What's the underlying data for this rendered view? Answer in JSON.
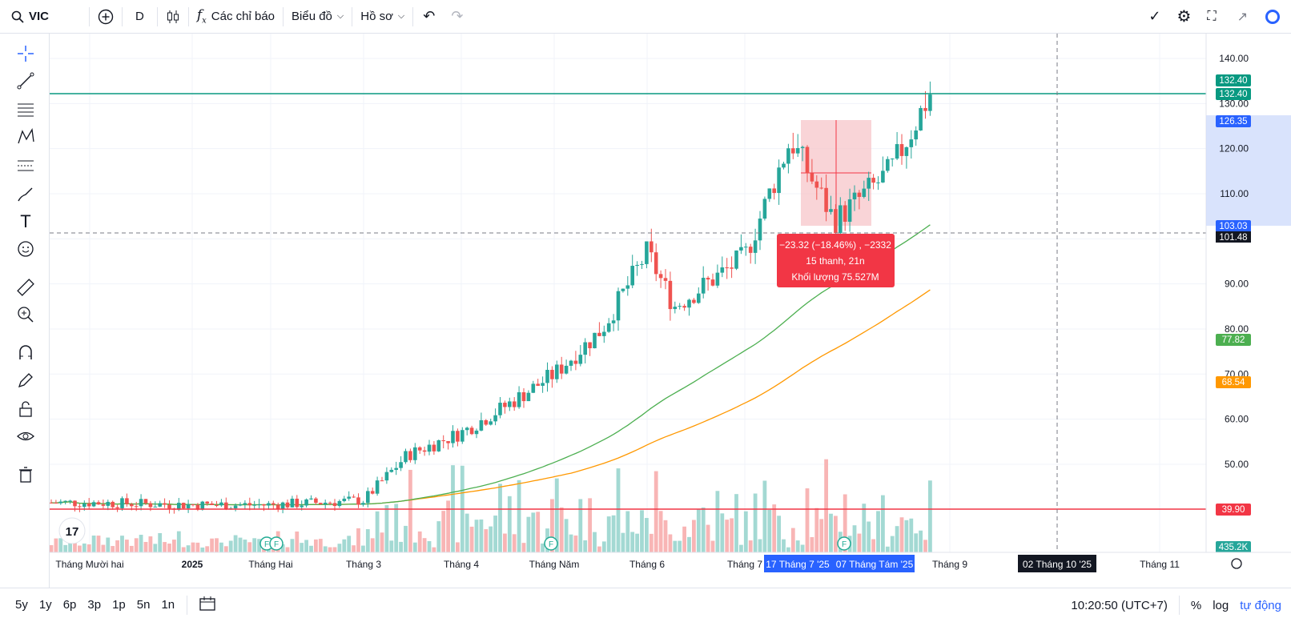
{
  "topbar": {
    "symbol": "VIC",
    "interval": "D",
    "indicators_label": "Các chỉ báo",
    "chart_label": "Biểu đồ",
    "profile_label": "Hồ sơ"
  },
  "price_axis": {
    "ticks": [
      "140.00",
      "130.00",
      "120.00",
      "110.00",
      "100.00",
      "90.00",
      "80.00",
      "70.00",
      "60.00",
      "50.00"
    ],
    "labels": {
      "high": "132.40",
      "last": "132.40",
      "measure_top": "126.35",
      "measure_bottom": "103.03",
      "crosshair": "101.48",
      "ma_green": "77.82",
      "ma_orange": "68.54",
      "red_line": "39.90",
      "volume": "435.2K"
    },
    "colors": {
      "up": "#26a69a",
      "down": "#ef5350",
      "green_line": "#089981",
      "blue": "#2962ff",
      "orange": "#ff9800",
      "red": "#f23645"
    }
  },
  "time_axis": {
    "labels": [
      "Tháng Mười hai",
      "2025",
      "Tháng Hai",
      "Tháng 3",
      "Tháng 4",
      "Tháng Năm",
      "Tháng 6",
      "Tháng 7",
      "Tháng 9",
      "Tháng 11"
    ],
    "range_start": "17 Tháng 7 '25",
    "range_end": "07 Tháng Tám '25",
    "crosshair": "02 Tháng 10 '25"
  },
  "measure": {
    "line1": "−23.32 (−18.46%) , −2332",
    "line2": "15 thanh, 21n",
    "line3": "Khối lượng 75.527M"
  },
  "bottombar": {
    "ranges": [
      "5y",
      "1y",
      "6p",
      "3p",
      "1p",
      "5n",
      "1n"
    ],
    "time": "10:20:50 (UTC+7)",
    "percent": "%",
    "log": "log",
    "auto": "tự động"
  },
  "chart_data": {
    "type": "candlestick",
    "symbol": "VIC",
    "interval": "D",
    "ylim": [
      40,
      140
    ],
    "x": [
      "Tháng Mười hai",
      "2025",
      "Tháng Hai",
      "Tháng 3",
      "Tháng 4",
      "Tháng Năm",
      "Tháng 6",
      "Tháng 7",
      "Tháng 9",
      "Tháng 11"
    ],
    "close_path": [
      {
        "t": "Tháng Mười hai",
        "v": 41.5
      },
      {
        "t": "2025",
        "v": 41.0
      },
      {
        "t": "Tháng Hai",
        "v": 41.0
      },
      {
        "t": "Tháng 3",
        "v": 42.0
      },
      {
        "t": "mid-Mar",
        "v": 52.0
      },
      {
        "t": "Tháng 4",
        "v": 57.0
      },
      {
        "t": "mid-Apr",
        "v": 63.0
      },
      {
        "t": "Tháng Năm",
        "v": 70.0
      },
      {
        "t": "mid-May",
        "v": 80.0
      },
      {
        "t": "Tháng 6",
        "v": 97.0
      },
      {
        "t": "mid-Jun",
        "v": 85.0
      },
      {
        "t": "Tháng 7",
        "v": 96.0
      },
      {
        "t": "mid-Jul",
        "v": 122.0
      },
      {
        "t": "Tháng Tám",
        "v": 104.0
      },
      {
        "t": "late-Aug",
        "v": 115.0
      },
      {
        "t": "Tháng 9",
        "v": 132.4
      }
    ],
    "horizontal_lines": [
      132.4,
      39.9
    ],
    "moving_averages": [
      {
        "name": "MA green",
        "last": 77.82
      },
      {
        "name": "MA orange",
        "last": 68.54
      }
    ],
    "measure": {
      "top": 126.35,
      "bottom": 103.03,
      "change": -23.32,
      "change_pct": -18.46,
      "bars": 15,
      "days": 21,
      "volume": "75.527M"
    }
  }
}
